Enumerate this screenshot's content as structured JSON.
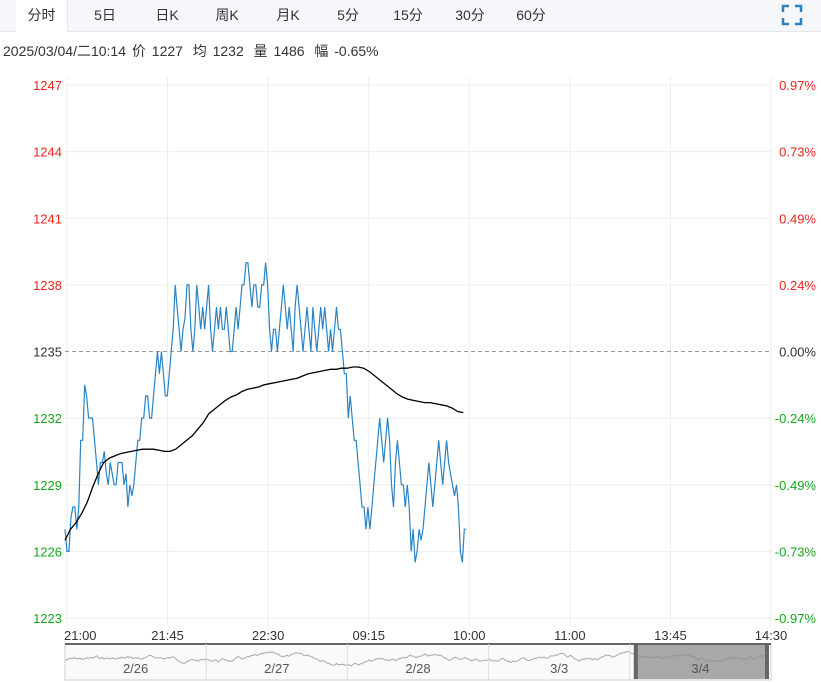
{
  "tabs": [
    {
      "label": "分时",
      "active": true
    },
    {
      "label": "5日",
      "active": false
    },
    {
      "label": "日K",
      "active": false
    },
    {
      "label": "周K",
      "active": false
    },
    {
      "label": "月K",
      "active": false
    },
    {
      "label": "5分",
      "active": false
    },
    {
      "label": "15分",
      "active": false
    },
    {
      "label": "30分",
      "active": false
    },
    {
      "label": "60分",
      "active": false
    }
  ],
  "fullscreen_icon": "fullscreen-icon",
  "info": {
    "datetime": "2025/03/04/二10:14",
    "price_label": "价",
    "price": "1227",
    "avg_label": "均",
    "avg": "1232",
    "vol_label": "量",
    "vol": "1486",
    "amp_label": "幅",
    "amp": "-0.65%"
  },
  "colors": {
    "up": "#e8251e",
    "down": "#16a51c",
    "price_line": "#2a84c4",
    "avg_line": "#000000",
    "base": "#333333"
  },
  "chart_data": {
    "type": "line",
    "ylim": [
      1223,
      1247
    ],
    "base_price": 1235,
    "y_ticks": [
      "1247",
      "1244",
      "1241",
      "1238",
      "1235",
      "1232",
      "1229",
      "1226",
      "1223"
    ],
    "y_ticks_right": [
      "0.97%",
      "0.73%",
      "0.49%",
      "0.24%",
      "0.00%",
      "-0.24%",
      "-0.49%",
      "-0.73%",
      "-0.97%"
    ],
    "x_ticks": [
      "21:00",
      "21:45",
      "22:30",
      "09:15",
      "10:00",
      "11:00",
      "13:45",
      "14:30"
    ],
    "price_values": [
      1227,
      1226,
      1226,
      1227.5,
      1228,
      1228,
      1227,
      1228,
      1231,
      1231,
      1233.5,
      1233,
      1232,
      1232,
      1232,
      1231,
      1230,
      1229,
      1230,
      1230,
      1230.5,
      1229.5,
      1229,
      1230,
      1229.5,
      1229,
      1229,
      1230,
      1230,
      1230,
      1229,
      1229.5,
      1228,
      1229,
      1228.5,
      1229,
      1230,
      1231,
      1231,
      1232,
      1232,
      1233,
      1233,
      1232,
      1232,
      1233,
      1234,
      1235,
      1234,
      1235,
      1234,
      1233,
      1233,
      1234,
      1235,
      1236,
      1238,
      1237,
      1236,
      1235,
      1236,
      1236.5,
      1238,
      1238,
      1236,
      1235,
      1236,
      1238,
      1237,
      1236,
      1237,
      1236,
      1237,
      1238,
      1236,
      1235,
      1236,
      1237,
      1236,
      1237,
      1236,
      1236,
      1237,
      1236,
      1235,
      1235,
      1236,
      1237,
      1236,
      1237,
      1238,
      1238,
      1239,
      1239,
      1238,
      1237,
      1238,
      1238,
      1237,
      1237,
      1238,
      1238,
      1239,
      1238,
      1236,
      1235,
      1236,
      1236,
      1235,
      1236,
      1237,
      1238,
      1237,
      1236,
      1237,
      1236,
      1235,
      1237,
      1238,
      1237,
      1236,
      1235,
      1236,
      1237,
      1236,
      1235,
      1237,
      1236,
      1235,
      1236,
      1237,
      1236,
      1237,
      1236,
      1235,
      1236,
      1235,
      1236,
      1237,
      1236,
      1236,
      1235,
      1234,
      1234,
      1232,
      1233,
      1232,
      1231,
      1231,
      1230,
      1229,
      1228,
      1228,
      1227,
      1228,
      1227,
      1228,
      1229,
      1230,
      1231,
      1232,
      1231,
      1230,
      1231,
      1232,
      1231,
      1229,
      1228,
      1230,
      1231,
      1230,
      1229,
      1229,
      1228,
      1229,
      1228,
      1226,
      1227,
      1225.5,
      1226,
      1227,
      1226.5,
      1227,
      1228,
      1229,
      1230,
      1229,
      1228,
      1229,
      1230,
      1231,
      1230,
      1229,
      1230,
      1231,
      1230,
      1229.5,
      1229,
      1228.5,
      1229,
      1228,
      1226,
      1225.5,
      1227,
      1227
    ],
    "avg_values": [
      1226.5,
      1227,
      1227.3,
      1227.7,
      1228.2,
      1228.9,
      1229.5,
      1230,
      1230.2,
      1230.3,
      1230.4,
      1230.45,
      1230.5,
      1230.55,
      1230.6,
      1230.6,
      1230.6,
      1230.55,
      1230.5,
      1230.5,
      1230.6,
      1230.8,
      1231,
      1231.2,
      1231.5,
      1231.8,
      1232.2,
      1232.4,
      1232.6,
      1232.8,
      1232.95,
      1233.05,
      1233.2,
      1233.3,
      1233.35,
      1233.4,
      1233.5,
      1233.55,
      1233.6,
      1233.65,
      1233.7,
      1233.75,
      1233.8,
      1233.9,
      1234,
      1234.05,
      1234.1,
      1234.15,
      1234.2,
      1234.2,
      1234.25,
      1234.25,
      1234.3,
      1234.3,
      1234.25,
      1234.1,
      1233.9,
      1233.7,
      1233.5,
      1233.3,
      1233.1,
      1232.95,
      1232.85,
      1232.8,
      1232.75,
      1232.7,
      1232.7,
      1232.65,
      1232.6,
      1232.55,
      1232.45,
      1232.3,
      1232.25
    ]
  },
  "navigator": {
    "labels": [
      "2/26",
      "2/27",
      "2/28",
      "3/3",
      "3/4"
    ]
  }
}
